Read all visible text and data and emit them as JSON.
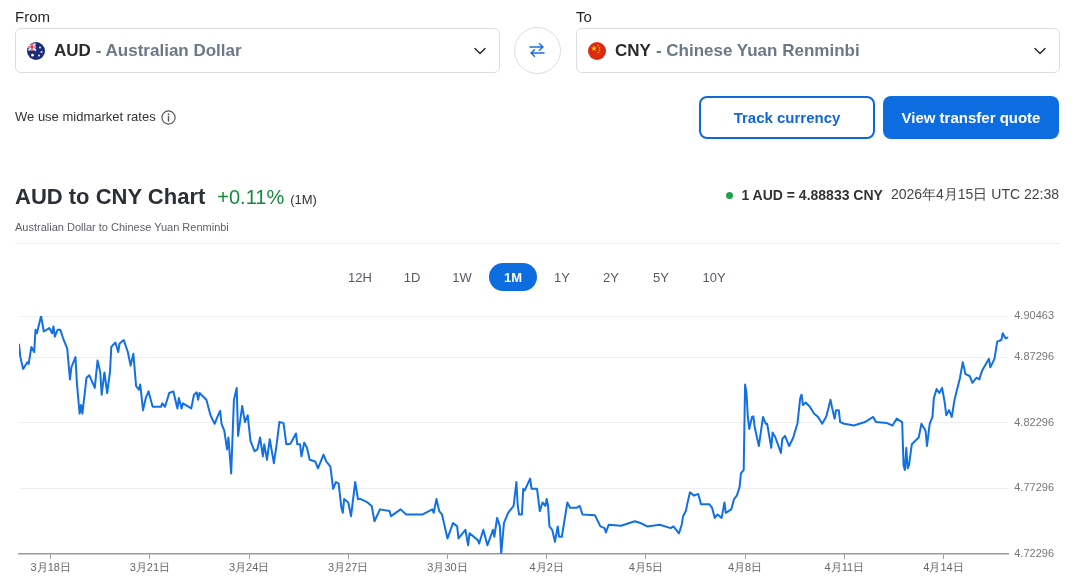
{
  "chart_data": {
    "type": "line",
    "title": "AUD to CNY Chart",
    "subtitle": "Australian Dollar to Chinese Yuan Renminbi",
    "annotations": [
      "From",
      "AUD",
      "- Australian Dollar",
      "To",
      "CNY",
      "- Chinese Yuan Renminbi",
      "We use midmarket rates",
      "Track currency",
      "View transfer quote",
      "+0.11%",
      "(1M)",
      "1 AUD = 4.88833 CNY",
      "2026年4月15日 UTC 22:38",
      "12H",
      "1D",
      "1W",
      "1M",
      "1Y",
      "2Y",
      "5Y",
      "10Y"
    ],
    "x": [
      "2026-03-17T01:00",
      "2026-03-17T02:00",
      "2026-03-17T04:00",
      "2026-03-17T07:00",
      "2026-03-17T08:00",
      "2026-03-17T10:00",
      "2026-03-17T12:00",
      "2026-03-17T13:00",
      "2026-03-17T14:00",
      "2026-03-17T17:00",
      "2026-03-17T19:00",
      "2026-03-17T23:00",
      "2026-03-18T01:00",
      "2026-03-18T02:00",
      "2026-03-18T03:00",
      "2026-03-18T05:00",
      "2026-03-18T07:00",
      "2026-03-18T09:00",
      "2026-03-18T12:00",
      "2026-03-18T14:00",
      "2026-03-18T15:00",
      "2026-03-18T18:00",
      "2026-03-18T19:00",
      "2026-03-18T21:00",
      "2026-03-18T22:00",
      "2026-03-18T23:00",
      "2026-03-19T02:00",
      "2026-03-19T04:00",
      "2026-03-19T08:00",
      "2026-03-19T10:00",
      "2026-03-19T12:00",
      "2026-03-19T13:00",
      "2026-03-19T15:00",
      "2026-03-19T17:00",
      "2026-03-19T19:00",
      "2026-03-19T20:00",
      "2026-03-19T23:00",
      "2026-03-20T01:00",
      "2026-03-20T02:00",
      "2026-03-20T05:00",
      "2026-03-20T08:00",
      "2026-03-20T10:00",
      "2026-03-20T12:00",
      "2026-03-20T14:00",
      "2026-03-20T16:00",
      "2026-03-20T17:00",
      "2026-03-20T19:00",
      "2026-03-20T21:00",
      "2026-03-20T23:00",
      "2026-03-21T02:00",
      "2026-03-21T08:00",
      "2026-03-21T09:00",
      "2026-03-21T11:00",
      "2026-03-21T14:00",
      "2026-03-21T17:00",
      "2026-03-21T20:00",
      "2026-03-21T21:00",
      "2026-03-21T23:00",
      "2026-03-22T00:00",
      "2026-03-22T06:00",
      "2026-03-22T08:00",
      "2026-03-22T10:00",
      "2026-03-22T11:00",
      "2026-03-22T12:00",
      "2026-03-22T17:00",
      "2026-03-22T20:00",
      "2026-03-22T23:00",
      "2026-03-23T01:00",
      "2026-03-23T03:00",
      "2026-03-23T04:00",
      "2026-03-23T06:00",
      "2026-03-23T08:00",
      "2026-03-23T09:00",
      "2026-03-23T11:00",
      "2026-03-23T13:00",
      "2026-03-23T15:00",
      "2026-03-23T16:00",
      "2026-03-23T19:00",
      "2026-03-23T21:00",
      "2026-03-23T23:00",
      "2026-03-24T01:00",
      "2026-03-24T04:00",
      "2026-03-24T06:00",
      "2026-03-24T08:00",
      "2026-03-24T10:00",
      "2026-03-24T11:00",
      "2026-03-24T13:00",
      "2026-03-24T15:00",
      "2026-03-24T18:00",
      "2026-03-24T20:00",
      "2026-03-24T22:00",
      "2026-03-25T01:00",
      "2026-03-25T03:00",
      "2026-03-25T06:00",
      "2026-03-25T10:00",
      "2026-03-25T11:00",
      "2026-03-25T13:00",
      "2026-03-25T14:00",
      "2026-03-25T16:00",
      "2026-03-25T18:00",
      "2026-03-25T20:00",
      "2026-03-26T00:00",
      "2026-03-26T02:00",
      "2026-03-26T06:00",
      "2026-03-26T08:00",
      "2026-03-26T11:00",
      "2026-03-26T13:00",
      "2026-03-26T15:00",
      "2026-03-26T17:00",
      "2026-03-26T19:00",
      "2026-03-26T20:00",
      "2026-03-26T21:00",
      "2026-03-27T00:00",
      "2026-03-27T02:00",
      "2026-03-27T05:00",
      "2026-03-27T07:00",
      "2026-03-27T09:00",
      "2026-03-27T14:00",
      "2026-03-27T17:00",
      "2026-03-27T19:00",
      "2026-03-27T23:00",
      "2026-03-28T06:00",
      "2026-03-28T07:00",
      "2026-03-28T14:00",
      "2026-03-28T18:00",
      "2026-03-29T06:00",
      "2026-03-29T13:00",
      "2026-03-29T14:00",
      "2026-03-29T16:00",
      "2026-03-29T18:00",
      "2026-03-29T20:00",
      "2026-03-29T22:00",
      "2026-03-30T00:00",
      "2026-03-30T04:00",
      "2026-03-30T07:00",
      "2026-03-30T08:00",
      "2026-03-30T13:00",
      "2026-03-30T15:00",
      "2026-03-30T16:00",
      "2026-03-30T22:00",
      "2026-03-30T23:00",
      "2026-03-31T02:00",
      "2026-03-31T05:00",
      "2026-03-31T09:00",
      "2026-03-31T10:00",
      "2026-03-31T12:00",
      "2026-03-31T14:00",
      "2026-03-31T15:00",
      "2026-03-31T17:00",
      "2026-03-31T20:00",
      "2026-04-01T00:00",
      "2026-04-01T02:00",
      "2026-04-01T03:00",
      "2026-04-01T04:00",
      "2026-04-01T06:00",
      "2026-04-01T07:00",
      "2026-04-01T08:00",
      "2026-04-01T12:00",
      "2026-04-01T13:00",
      "2026-04-01T17:00",
      "2026-04-01T19:00",
      "2026-04-01T21:00",
      "2026-04-01T23:00",
      "2026-04-02T00:00",
      "2026-04-02T01:00",
      "2026-04-02T02:00",
      "2026-04-02T04:00",
      "2026-04-02T06:00",
      "2026-04-02T08:00",
      "2026-04-02T09:00",
      "2026-04-02T11:00",
      "2026-04-02T15:00",
      "2026-04-02T17:00",
      "2026-04-02T22:00",
      "2026-04-03T00:00",
      "2026-04-03T02:00",
      "2026-04-03T11:00",
      "2026-04-03T15:00",
      "2026-04-03T18:00",
      "2026-04-03T19:00",
      "2026-04-03T21:00",
      "2026-04-04T06:00",
      "2026-04-04T16:00",
      "2026-04-04T20:00",
      "2026-04-05T01:00",
      "2026-04-05T10:00",
      "2026-04-05T18:00",
      "2026-04-05T20:00",
      "2026-04-06T00:00",
      "2026-04-06T02:00",
      "2026-04-06T03:00",
      "2026-04-06T05:00",
      "2026-04-06T06:00",
      "2026-04-06T08:00",
      "2026-04-06T11:00",
      "2026-04-06T14:00",
      "2026-04-06T16:00",
      "2026-04-06T22:00",
      "2026-04-07T00:00",
      "2026-04-07T02:00",
      "2026-04-07T04:00",
      "2026-04-07T07:00",
      "2026-04-07T09:00",
      "2026-04-07T10:00",
      "2026-04-07T14:00",
      "2026-04-07T16:00",
      "2026-04-07T18:00",
      "2026-04-07T20:00",
      "2026-04-07T21:00",
      "2026-04-07T23:00",
      "2026-04-08T00:00",
      "2026-04-08T01:00",
      "2026-04-08T02:00",
      "2026-04-08T03:00",
      "2026-04-08T05:00",
      "2026-04-08T06:00",
      "2026-04-08T07:00",
      "2026-04-08T10:00",
      "2026-04-08T13:00",
      "2026-04-08T15:00",
      "2026-04-08T16:00",
      "2026-04-08T19:00",
      "2026-04-08T20:00",
      "2026-04-08T22:00",
      "2026-04-09T02:00",
      "2026-04-09T03:00",
      "2026-04-09T05:00",
      "2026-04-09T08:00",
      "2026-04-09T11:00",
      "2026-04-09T12:00",
      "2026-04-09T14:00",
      "2026-04-09T16:00",
      "2026-04-09T17:00",
      "2026-04-09T18:00",
      "2026-04-09T20:00",
      "2026-04-09T23:00",
      "2026-04-10T02:00",
      "2026-04-10T05:00",
      "2026-04-10T08:00",
      "2026-04-10T11:00",
      "2026-04-10T14:00",
      "2026-04-10T15:00",
      "2026-04-10T17:00",
      "2026-04-10T18:00",
      "2026-04-10T20:00",
      "2026-04-10T21:00",
      "2026-04-11T00:00",
      "2026-04-11T07:00",
      "2026-04-11T15:00",
      "2026-04-11T21:00",
      "2026-04-11T23:00",
      "2026-04-12T07:00",
      "2026-04-12T11:00",
      "2026-04-12T14:00",
      "2026-04-12T18:00",
      "2026-04-12T19:00",
      "2026-04-12T20:00",
      "2026-04-12T21:00",
      "2026-04-12T22:00",
      "2026-04-12T23:00",
      "2026-04-13T01:00",
      "2026-04-13T06:00",
      "2026-04-13T08:00",
      "2026-04-13T11:00",
      "2026-04-13T12:00",
      "2026-04-13T14:00",
      "2026-04-13T16:00",
      "2026-04-13T17:00",
      "2026-04-13T19:00",
      "2026-04-13T21:00",
      "2026-04-13T23:00",
      "2026-04-14T01:00",
      "2026-04-14T02:00",
      "2026-04-14T04:00",
      "2026-04-14T06:00",
      "2026-04-14T08:00",
      "2026-04-14T12:00",
      "2026-04-14T14:00",
      "2026-04-14T16:00",
      "2026-04-14T19:00",
      "2026-04-14T21:00",
      "2026-04-15T00:00",
      "2026-04-15T02:00",
      "2026-04-15T04:00",
      "2026-04-15T09:00",
      "2026-04-15T10:00",
      "2026-04-15T13:00",
      "2026-04-15T15:00",
      "2026-04-15T18:00",
      "2026-04-15T19:00",
      "2026-04-15T21:00",
      "2026-04-15T23:00"
    ],
    "values": [
      4.8829,
      4.8732,
      4.8641,
      4.8693,
      4.868,
      4.881,
      4.8771,
      4.8941,
      4.8915,
      4.9046,
      4.8928,
      4.8954,
      4.8915,
      4.8967,
      4.8889,
      4.8941,
      4.8941,
      4.8876,
      4.8797,
      4.8562,
      4.8654,
      4.8732,
      4.8536,
      4.8301,
      4.8366,
      4.8301,
      4.8575,
      4.8594,
      4.8497,
      4.8706,
      4.8615,
      4.8445,
      4.8615,
      4.8458,
      4.8615,
      4.881,
      4.8844,
      4.8771,
      4.8837,
      4.8863,
      4.8771,
      4.8667,
      4.8758,
      4.851,
      4.8484,
      4.8523,
      4.8327,
      4.8419,
      4.8471,
      4.8353,
      4.8353,
      4.8379,
      4.8353,
      4.8458,
      4.8471,
      4.834,
      4.8419,
      4.834,
      4.8379,
      4.834,
      4.8445,
      4.8463,
      4.8406,
      4.8458,
      4.8406,
      4.8288,
      4.8223,
      4.8275,
      4.8322,
      4.8223,
      4.817,
      4.8027,
      4.8118,
      4.7844,
      4.8406,
      4.8497,
      4.8131,
      4.8358,
      4.8236,
      4.8288,
      4.8092,
      4.8013,
      4.8027,
      4.8118,
      4.7974,
      4.8066,
      4.7948,
      4.8105,
      4.7922,
      4.8066,
      4.8236,
      4.8228,
      4.8066,
      4.8071,
      4.8149,
      4.8066,
      4.8066,
      4.7974,
      4.8079,
      4.804,
      4.7948,
      4.7935,
      4.7883,
      4.7987,
      4.7935,
      4.7896,
      4.7726,
      4.7778,
      4.7765,
      4.7582,
      4.7543,
      4.7648,
      4.7622,
      4.7517,
      4.7778,
      4.7648,
      4.7648,
      4.7622,
      4.7595,
      4.7478,
      4.7569,
      4.7556,
      4.7517,
      4.7569,
      4.753,
      4.753,
      4.7569,
      4.7543,
      4.7648,
      4.7556,
      4.753,
      4.7439,
      4.7347,
      4.7465,
      4.7439,
      4.7347,
      4.7413,
      4.7295,
      4.7386,
      4.7334,
      4.7308,
      4.7413,
      4.7295,
      4.7413,
      4.736,
      4.7504,
      4.7439,
      4.723,
      4.7465,
      4.7543,
      4.7595,
      4.7778,
      4.7595,
      4.753,
      4.753,
      4.7726,
      4.7713,
      4.7804,
      4.7726,
      4.7726,
      4.7556,
      4.7622,
      4.7595,
      4.7648,
      4.7595,
      4.7439,
      4.7413,
      4.7321,
      4.7439,
      4.736,
      4.736,
      4.7622,
      4.7582,
      4.7582,
      4.7595,
      4.753,
      4.7525,
      4.7439,
      4.7426,
      4.7392,
      4.7452,
      4.7444,
      4.7478,
      4.7465,
      4.7439,
      4.7452,
      4.7426,
      4.7439,
      4.7386,
      4.7452,
      4.7517,
      4.7556,
      4.7609,
      4.77,
      4.7674,
      4.7687,
      4.7609,
      4.7609,
      4.7582,
      4.7504,
      4.753,
      4.7504,
      4.7622,
      4.7543,
      4.7569,
      4.7648,
      4.7674,
      4.7739,
      4.7844,
      4.787,
      4.8523,
      4.8458,
      4.8275,
      4.8183,
      4.8275,
      4.828,
      4.8196,
      4.8053,
      4.8275,
      4.8223,
      4.8223,
      4.804,
      4.8157,
      4.8118,
      4.8,
      4.8105,
      4.8131,
      4.8053,
      4.8118,
      4.8157,
      4.8223,
      4.8419,
      4.8445,
      4.8366,
      4.8385,
      4.8353,
      4.8301,
      4.8275,
      4.8223,
      4.828,
      4.8406,
      4.8353,
      4.8262,
      4.8327,
      4.8327,
      4.8236,
      4.8223,
      4.821,
      4.8236,
      4.8275,
      4.8236,
      4.8228,
      4.821,
      4.8262,
      4.8236,
      4.7909,
      4.787,
      4.804,
      4.7883,
      4.7909,
      4.8066,
      4.8118,
      4.8223,
      4.817,
      4.8053,
      4.8223,
      4.8275,
      4.8419,
      4.8489,
      4.8458,
      4.8497,
      4.8379,
      4.8288,
      4.8327,
      4.8275,
      4.8406,
      4.8575,
      4.8693,
      4.8602,
      4.8588,
      4.8536,
      4.8575,
      4.8562,
      4.8628,
      4.8719,
      4.8654,
      4.8719,
      4.885,
      4.8863,
      4.8915,
      4.8876,
      4.8883
    ],
    "color": "#1170e4",
    "xlim": [
      "2026-03-17T01:00",
      "2026-04-15T23:00"
    ],
    "xticks": [
      {
        "value": "2026-03-18",
        "label": "3月18日"
      },
      {
        "value": "2026-03-21",
        "label": "3月21日"
      },
      {
        "value": "2026-03-24",
        "label": "3月24日"
      },
      {
        "value": "2026-03-27",
        "label": "3月27日"
      },
      {
        "value": "2026-03-30",
        "label": "3月30日"
      },
      {
        "value": "2026-04-02",
        "label": "4月2日"
      },
      {
        "value": "2026-04-05",
        "label": "4月5日"
      },
      {
        "value": "2026-04-08",
        "label": "4月8日"
      },
      {
        "value": "2026-04-11",
        "label": "4月11日"
      },
      {
        "value": "2026-04-14",
        "label": "4月14日"
      }
    ],
    "ylim": [
      4.72296,
      4.90463
    ],
    "yticks": [
      4.72296,
      4.77296,
      4.82296,
      4.87296,
      4.90463
    ],
    "grid": "y",
    "marker": "none",
    "line_style": "solid"
  }
}
